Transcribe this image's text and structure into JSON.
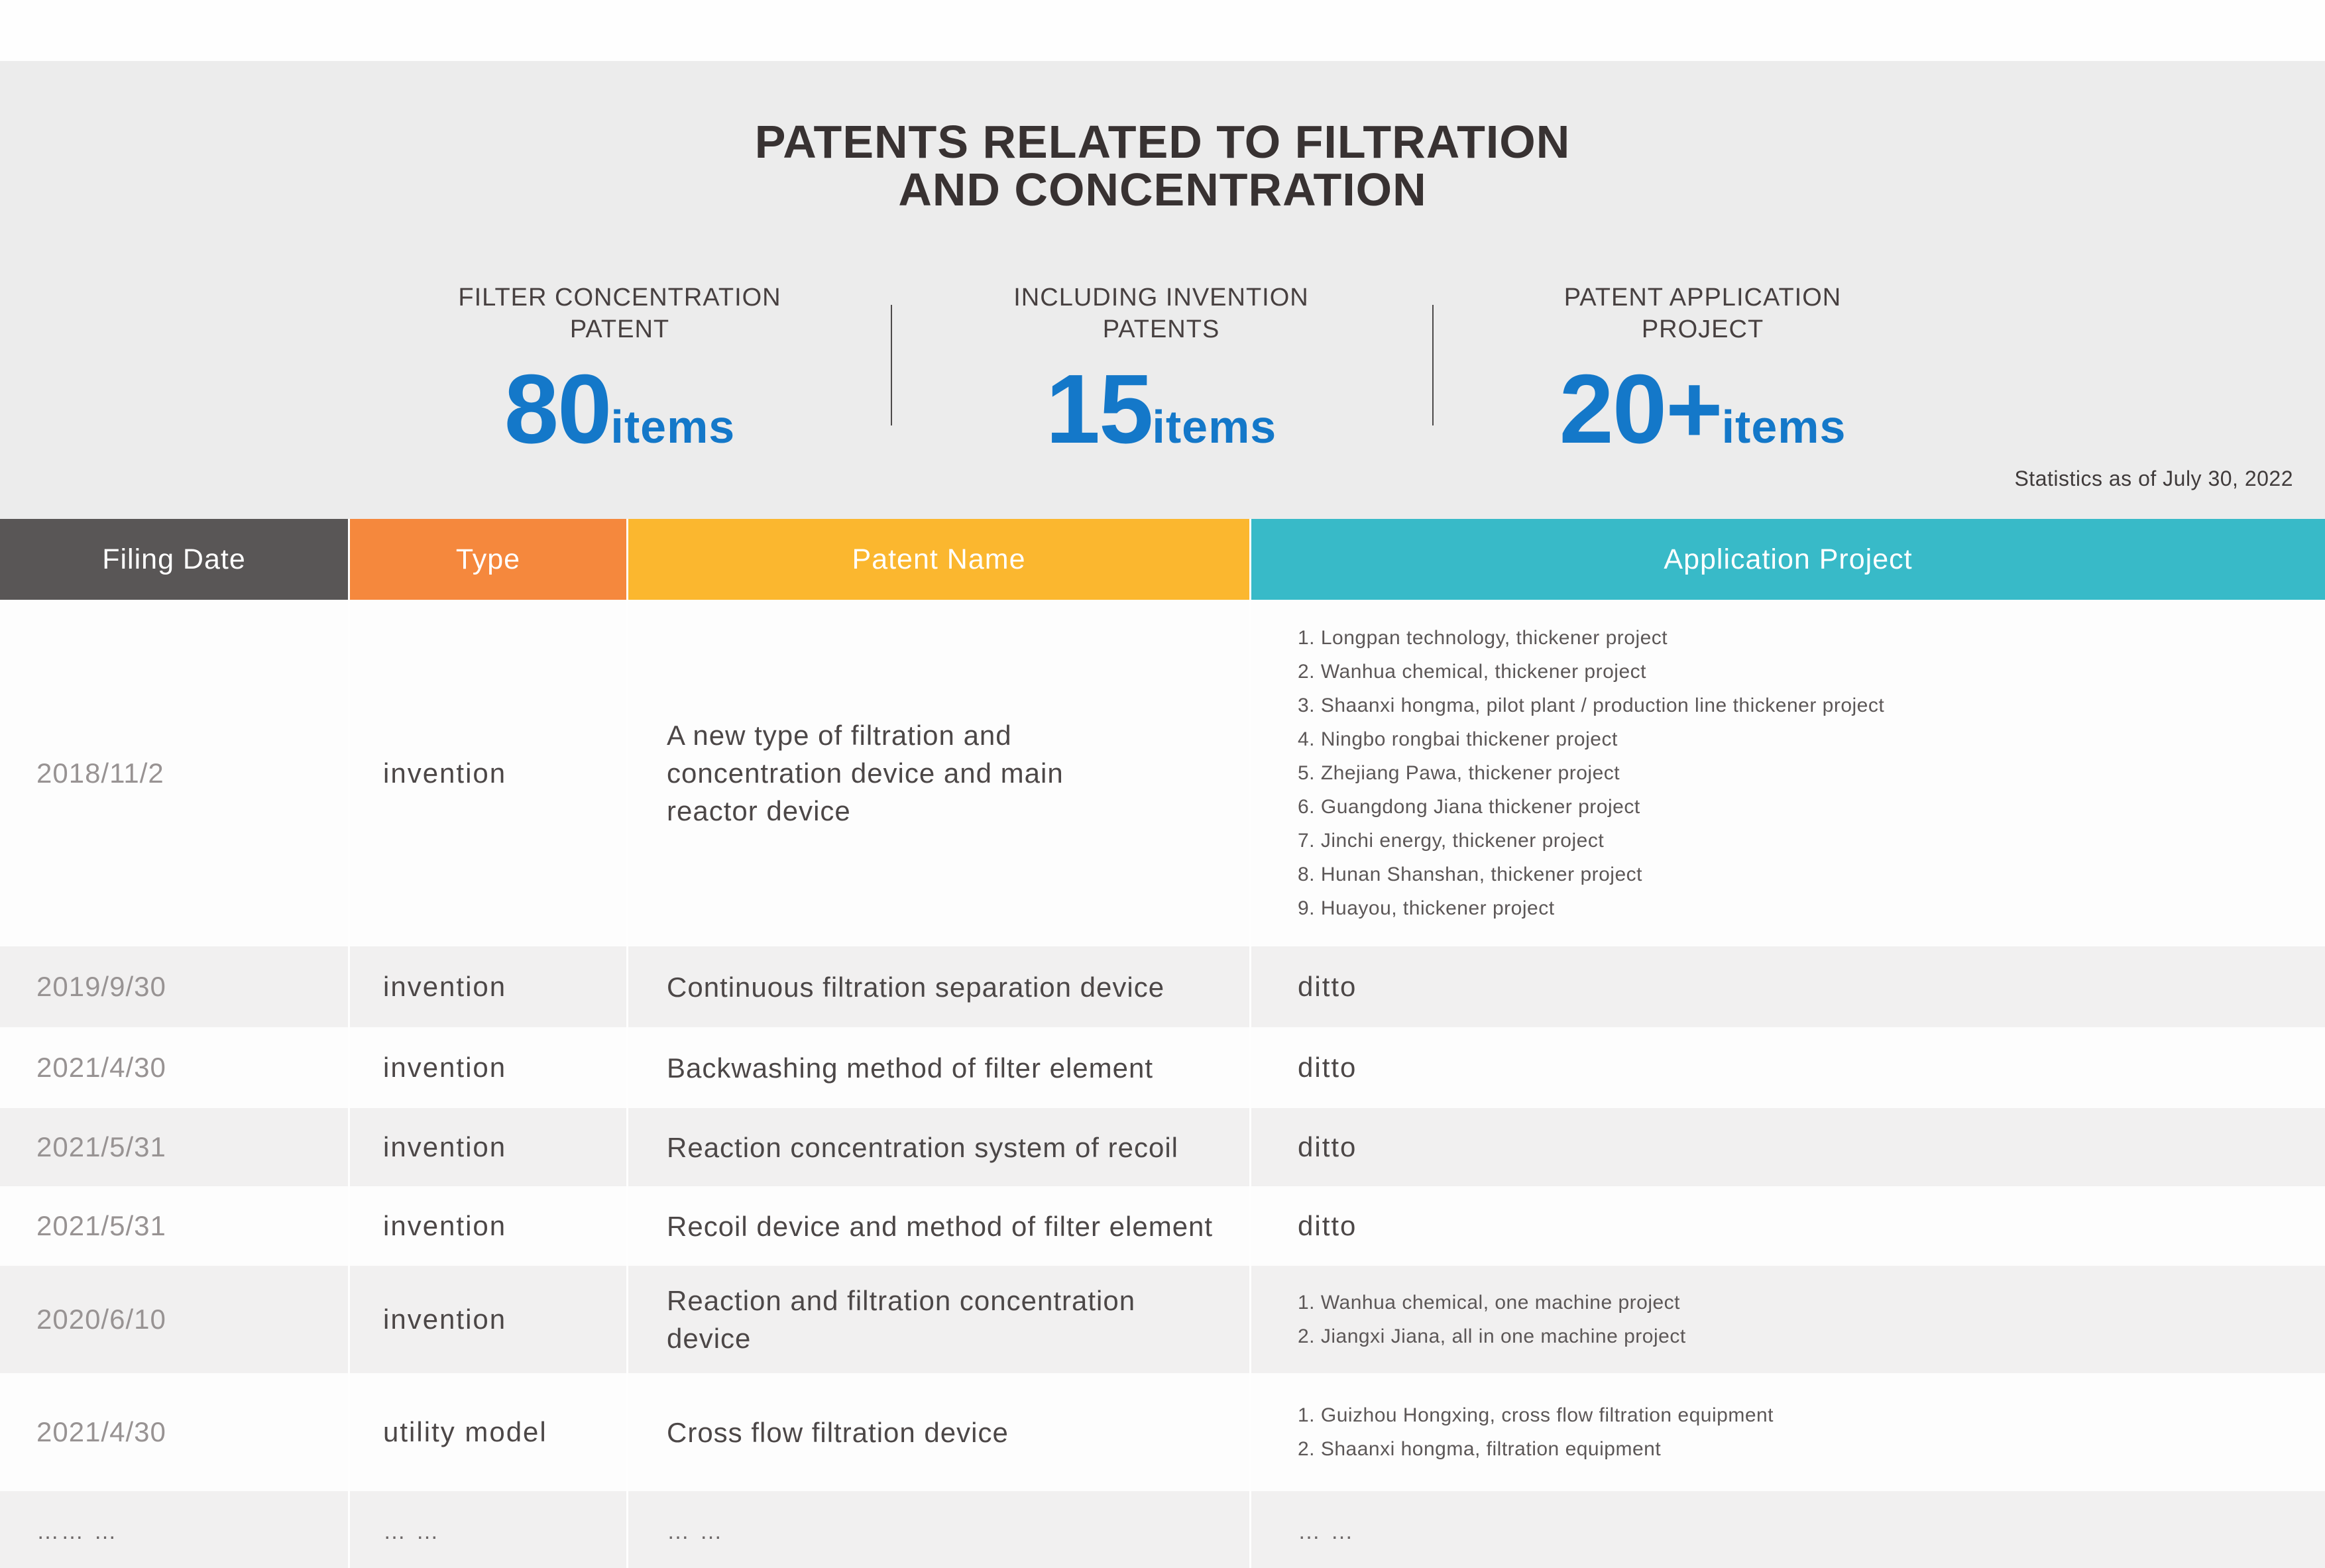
{
  "page": {
    "title_line1": "PATENTS RELATED TO FILTRATION",
    "title_line2": "AND CONCENTRATION",
    "stats_note": "Statistics as of July 30, 2022"
  },
  "colors": {
    "accent_blue": "#1478C9",
    "hero_background": "#ececec",
    "row_stripe": "#f1f0f0",
    "header_filing_date": "#595656",
    "header_type": "#F5883D",
    "header_patent_name": "#FBB72F",
    "header_application_project": "#38BAC8"
  },
  "stats": [
    {
      "label_line1": "FILTER CONCENTRATION",
      "label_line2": "PATENT",
      "value": "80",
      "unit": "items"
    },
    {
      "label_line1": "INCLUDING INVENTION",
      "label_line2": "PATENTS",
      "value": "15",
      "unit": "items"
    },
    {
      "label_line1": "PATENT APPLICATION",
      "label_line2": "PROJECT",
      "value": "20+",
      "unit": "items"
    }
  ],
  "table": {
    "headers": [
      {
        "label": "Filing Date",
        "color": "#595656"
      },
      {
        "label": "Type",
        "color": "#F5883D"
      },
      {
        "label": "Patent Name",
        "color": "#FBB72F"
      },
      {
        "label": "Application Project",
        "color": "#38BAC8"
      }
    ],
    "rows": [
      {
        "date": "2018/11/2",
        "type": "invention",
        "name": "A new type of filtration and\nconcentration device and main\nreactor device",
        "projects": [
          "1. Longpan technology, thickener project",
          "2. Wanhua chemical, thickener project",
          "3. Shaanxi hongma, pilot plant / production line thickener project",
          "4. Ningbo rongbai thickener project",
          "5. Zhejiang Pawa, thickener project",
          "6. Guangdong Jiana thickener project",
          "7. Jinchi energy, thickener project",
          "8. Hunan Shanshan, thickener project",
          "9. Huayou, thickener project"
        ]
      },
      {
        "date": "2019/9/30",
        "type": "invention",
        "name": "Continuous filtration separation device",
        "projects": [
          "ditto"
        ]
      },
      {
        "date": "2021/4/30",
        "type": "invention",
        "name": "Backwashing method of filter element",
        "projects": [
          "ditto"
        ]
      },
      {
        "date": "2021/5/31",
        "type": "invention",
        "name": "Reaction concentration system of recoil",
        "projects": [
          "ditto"
        ]
      },
      {
        "date": "2021/5/31",
        "type": "invention",
        "name": "Recoil device and method of filter element",
        "projects": [
          "ditto"
        ]
      },
      {
        "date": "2020/6/10",
        "type": "invention",
        "name": "Reaction and filtration concentration device",
        "projects": [
          "1. Wanhua chemical, one machine project",
          "2. Jiangxi Jiana, all in one machine project"
        ]
      },
      {
        "date": "2021/4/30",
        "type": "utility model",
        "name": "Cross flow filtration device",
        "projects": [
          "1. Guizhou Hongxing, cross flow filtration equipment",
          "2. Shaanxi hongma, filtration equipment"
        ]
      },
      {
        "date": "…… …",
        "type": "… …",
        "name": "… …",
        "projects": [
          "… …"
        ]
      }
    ]
  }
}
